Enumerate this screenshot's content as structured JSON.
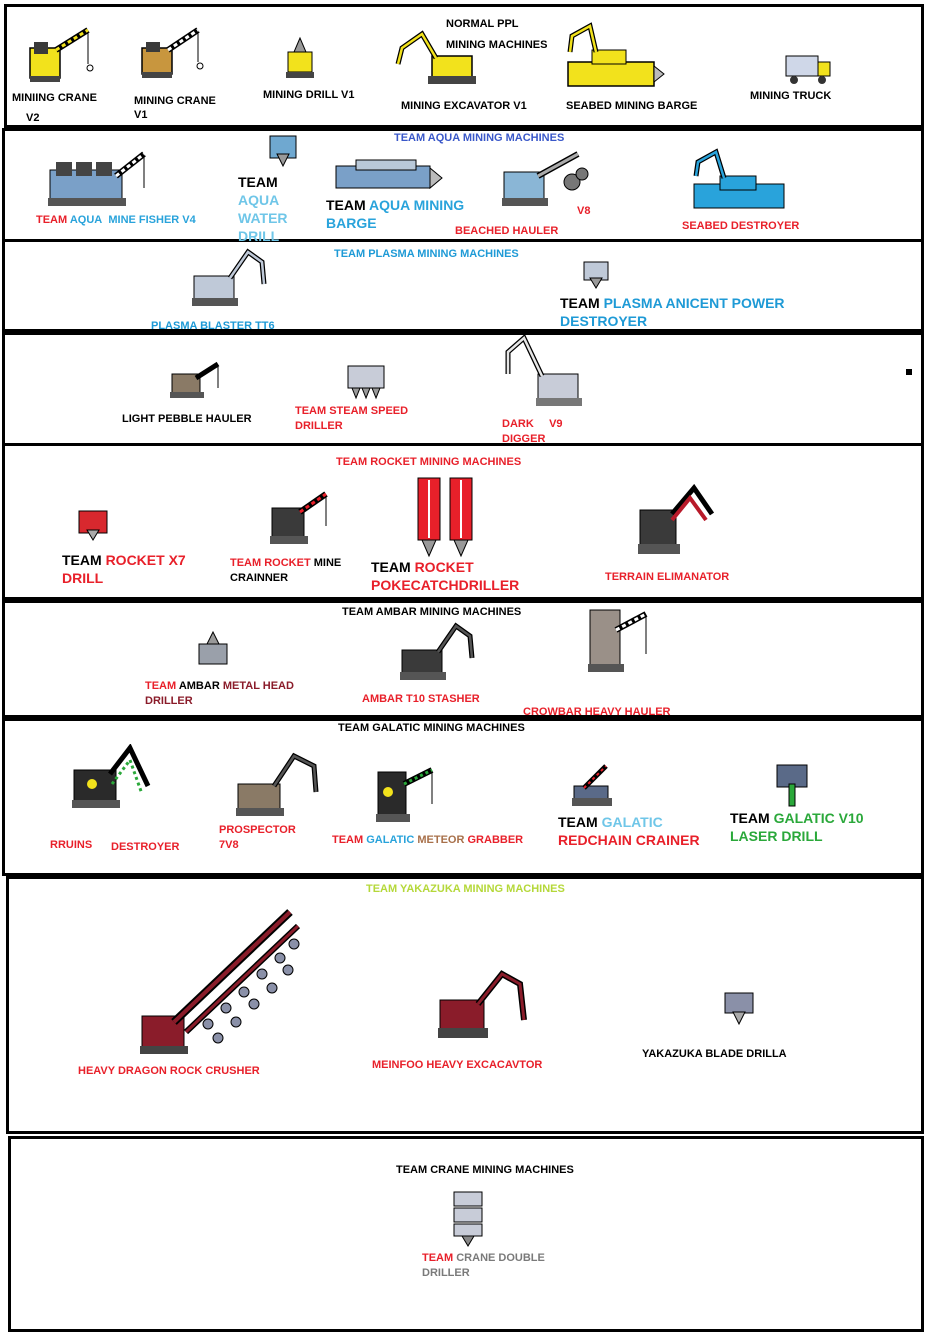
{
  "colors": {
    "border": "#000000",
    "red": "#e8202a",
    "aqua": "#29a3db",
    "blue_heading": "#3a58c9",
    "green": "#2aa83a",
    "lime": "#b5d83a",
    "grey": "#7a7a7a"
  },
  "normal": {
    "heading_line1": "NORMAL PPL",
    "heading_line2": "MINING MACHINES",
    "crane_v2_a": "MINIING CRANE",
    "crane_v2_b": "V2",
    "crane_v1_a": "MINING CRANE",
    "crane_v1_b": "V1",
    "drill_v1": "MINING DRILL V1",
    "excavator_v1": "MINING EXCAVATOR V1",
    "seabed_barge": "SEABED MINING BARGE",
    "truck": "MINING TRUCK"
  },
  "aqua": {
    "heading": "TEAM AQUA MINING MACHINES",
    "fisher_team": "TEAM",
    "fisher_aqua": "AQUA",
    "fisher_name": "MINE FISHER V4",
    "water_team": "TEAM",
    "water_1": "AQUA",
    "water_2": "WATER",
    "water_3": "DRILL",
    "barge_team": "TEAM",
    "barge_aqua": "AQUA MINING",
    "barge_name": "BARGE",
    "beached_hauler": "BEACHED HAULER",
    "beached_v8": "V8",
    "seabed_destroyer": "SEABED DESTROYER"
  },
  "plasma": {
    "heading": "TEAM PLASMA MINING MACHINES",
    "blaster": "PLASMA BLASTER TT6",
    "destroyer_team": "TEAM",
    "destroyer_1": "PLASMA ANICENT POWER",
    "destroyer_2": "DESTROYER"
  },
  "misc": {
    "light_pebble": "LIGHT PEBBLE HAULER",
    "steam_1": "TEAM STEAM  SPEED",
    "steam_2": "DRILLER",
    "dark_digger_1": "DARK",
    "dark_digger_v9": "V9",
    "dark_digger_2": "DIGGER"
  },
  "rocket": {
    "heading": "TEAM ROCKET MINING MACHINES",
    "x7_team": "TEAM",
    "x7_name": "ROCKET X7",
    "x7_drill": "DRILL",
    "mine_team": "TEAM",
    "mine_rocket": "ROCKET",
    "mine_name": "MINE",
    "mine_2": "CRAINNER",
    "poke_team": "TEAM",
    "poke_rocket": "ROCKET",
    "poke_name": "POKECATCHDRILLER",
    "terrain": "TERRAIN ELIMANATOR"
  },
  "ambar": {
    "heading": "TEAM AMBAR MINING MACHINES",
    "metal_team": "TEAM",
    "metal_ambar": "AMBAR",
    "metal_name": "METAL HEAD",
    "metal_2": "DRILLER",
    "stasher": "AMBAR T10 STASHER",
    "crowbar": "CROWBAR HEAVY HAULER"
  },
  "galatic": {
    "heading": "TEAM GALATIC  MINING MACHINES",
    "rruins": "RRUINS",
    "destroyer": "DESTROYER",
    "prospector_1": "PROSPECTOR",
    "prospector_2": "7V8",
    "meteor_team": "TEAM",
    "meteor_galatic": "GALATIC",
    "meteor_meteor": "METEOR",
    "meteor_grabber": "GRABBER",
    "redchain_team": "TEAM",
    "redchain_galatic": "GALATIC",
    "redchain_name": "REDCHAIN CRAINER",
    "laser_team": "TEAM",
    "laser_name": "GALATIC V10",
    "laser_2": "LASER DRILL"
  },
  "yakazuka": {
    "heading": "TEAM YAKAZUKA MINING MACHINES",
    "dragon": "HEAVY DRAGON ROCK CRUSHER",
    "meinfoo": "MEINFOO HEAVY EXCACAVTOR",
    "blade": "YAKAZUKA BLADE DRILLA"
  },
  "crane": {
    "heading": "TEAM CRANE MINING MACHINES",
    "double_team": "TEAM",
    "double_name": "CRANE DOUBLE",
    "double_2": "DRILLER"
  },
  "icons": [
    "crane-icon",
    "drill-icon",
    "excavator-icon",
    "barge-icon",
    "truck-icon",
    "hauler-icon"
  ]
}
